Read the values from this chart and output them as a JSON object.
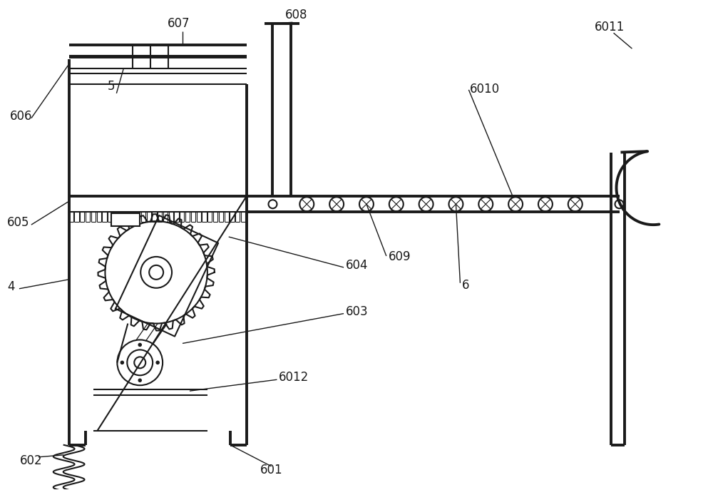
{
  "bg_color": "#ffffff",
  "line_color": "#1a1a1a",
  "lw": 1.5,
  "tlw": 2.8,
  "fs": 12,
  "figw": 10.0,
  "figh": 6.87,
  "dpi": 100
}
